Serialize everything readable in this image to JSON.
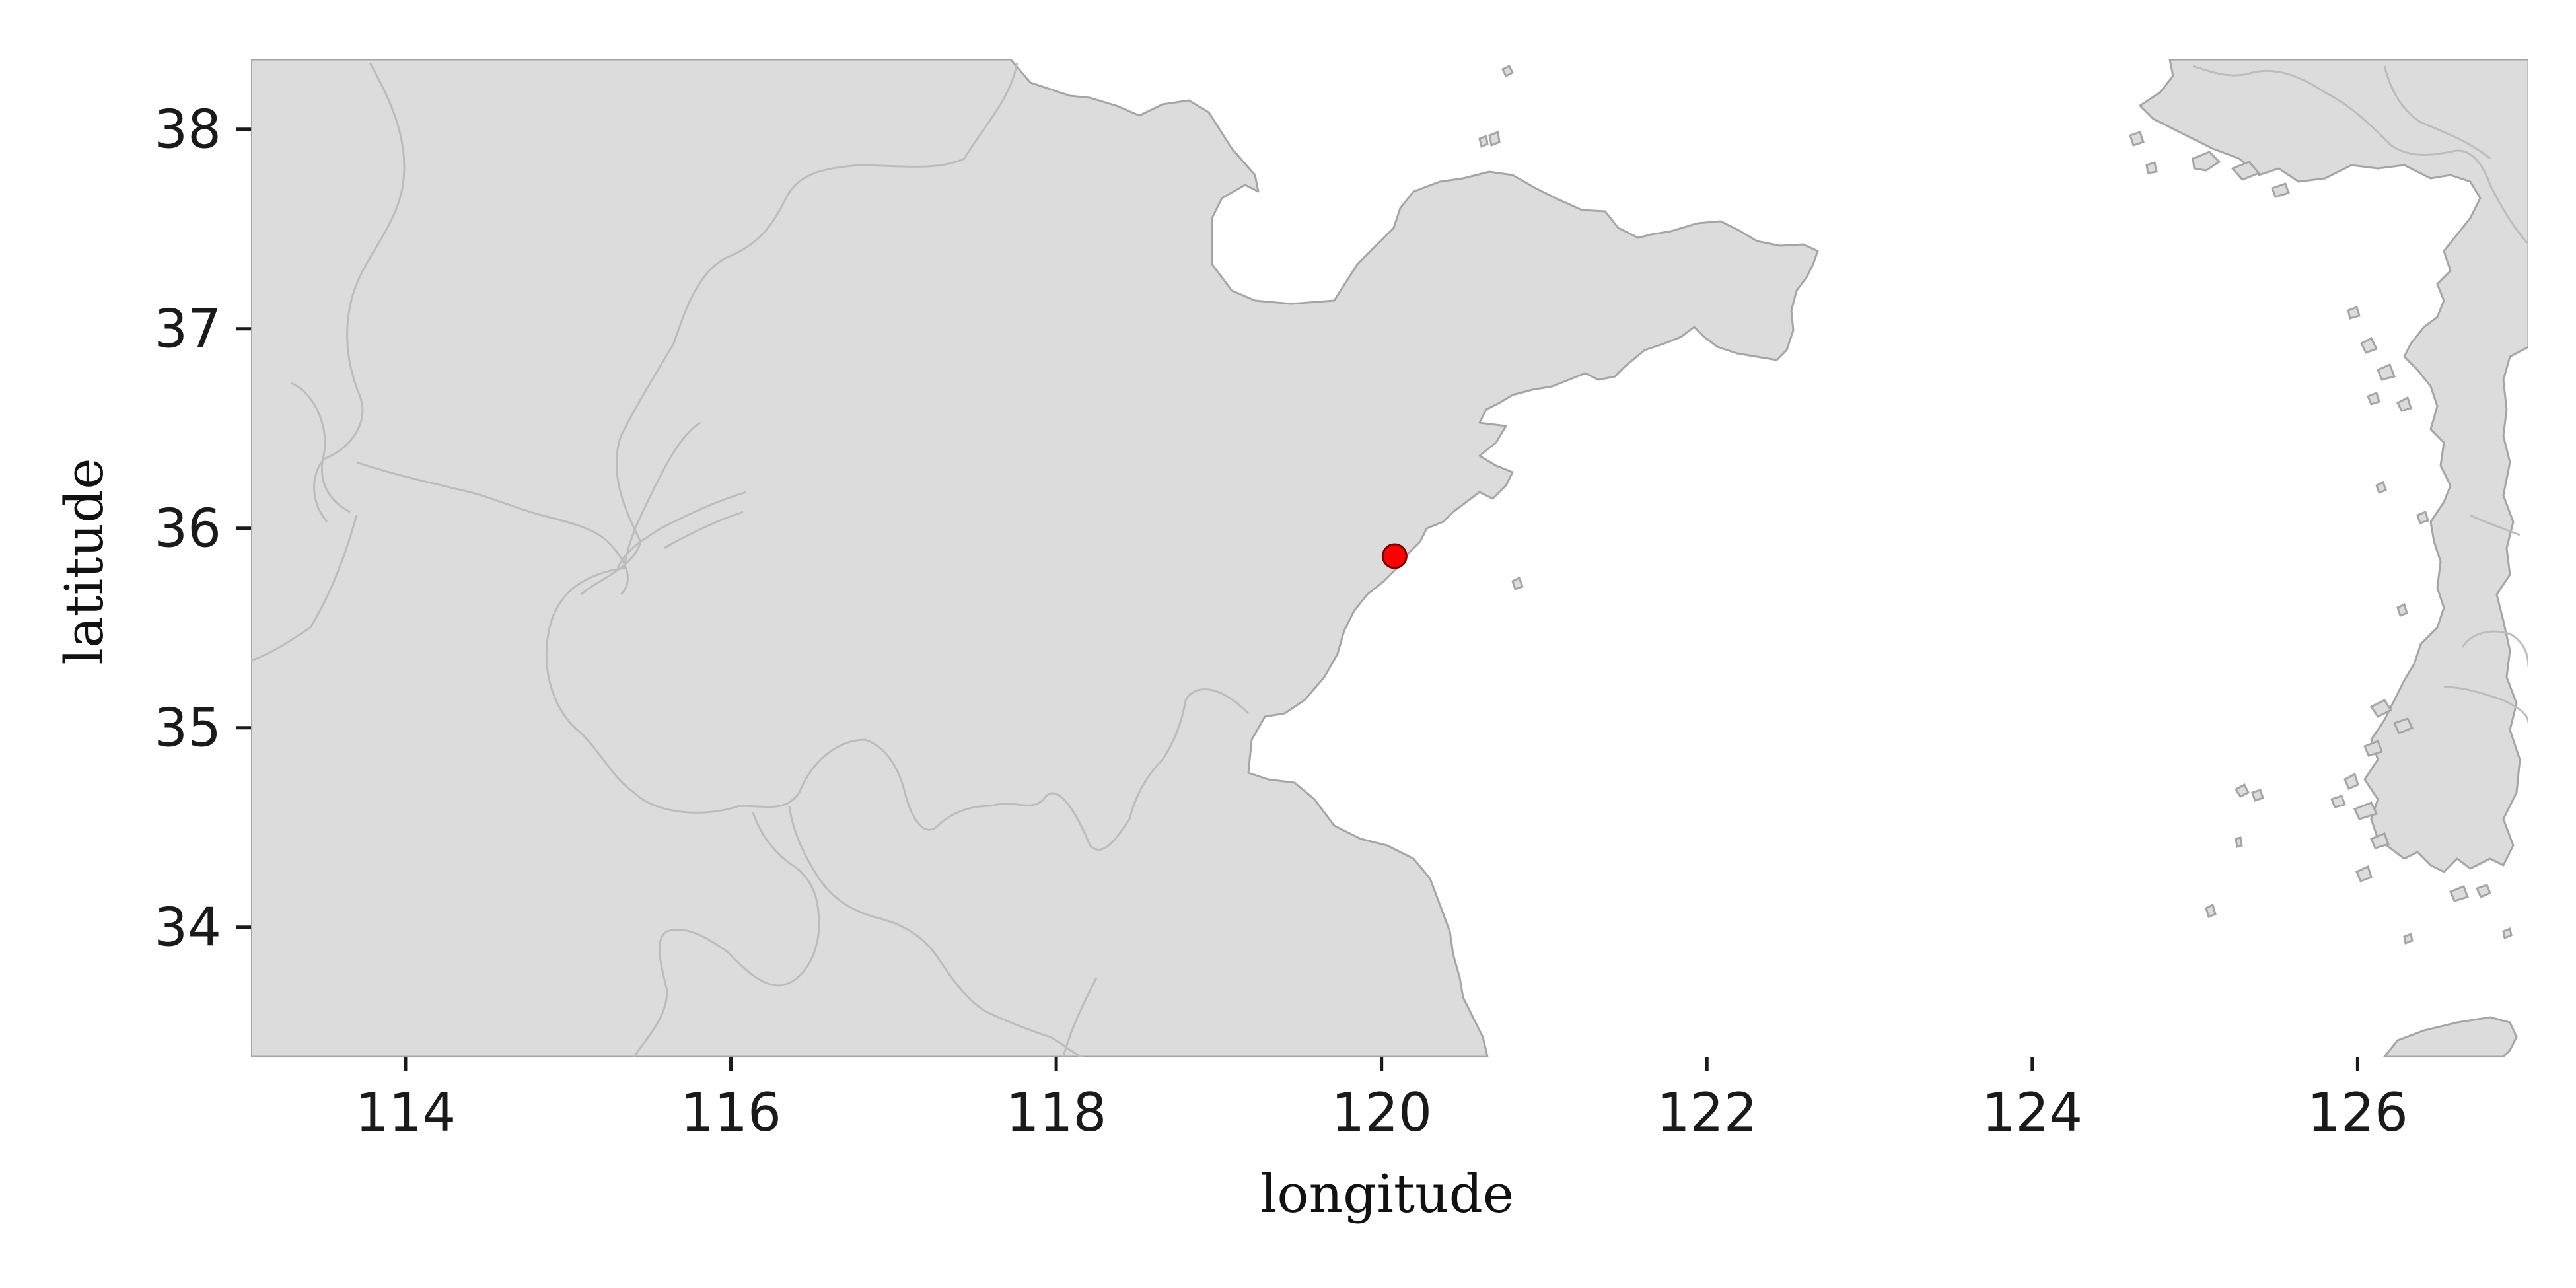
{
  "map": {
    "xlabel": "longitude",
    "ylabel": "latitude",
    "xlim": [
      113.05,
      127.05
    ],
    "ylim": [
      33.35,
      38.35
    ],
    "xticks": [
      114,
      116,
      118,
      120,
      122,
      124,
      126
    ],
    "yticks": [
      34,
      35,
      36,
      37,
      38
    ],
    "marker": {
      "lon": 120.08,
      "lat": 35.86,
      "color": "#ff0000"
    },
    "land_color": "#dcdcdc",
    "coast_color": "#a5a5a5",
    "border_color": "#bcbcbc"
  }
}
